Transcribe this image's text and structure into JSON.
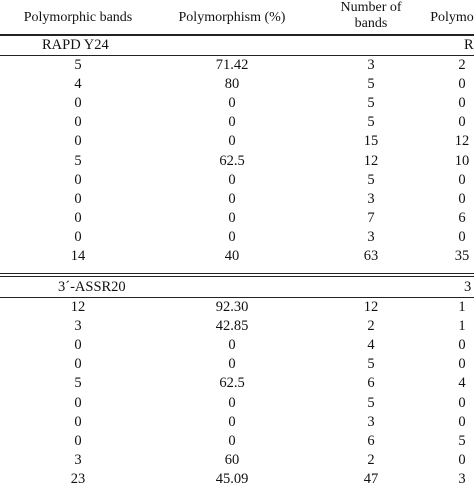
{
  "header": {
    "col1": "Polymorphic bands",
    "col2": "Polymorphism (%)",
    "col3_line1": "Number of",
    "col3_line2": "bands",
    "col4": "Polymo"
  },
  "sections": [
    {
      "label": "RAPD Y24",
      "right_label": "R",
      "rows": [
        [
          "5",
          "71.42",
          "3",
          "2"
        ],
        [
          "4",
          "80",
          "5",
          "0"
        ],
        [
          "0",
          "0",
          "5",
          "0"
        ],
        [
          "0",
          "0",
          "5",
          "0"
        ],
        [
          "0",
          "0",
          "15",
          "12"
        ],
        [
          "5",
          "62.5",
          "12",
          "10"
        ],
        [
          "0",
          "0",
          "5",
          "0"
        ],
        [
          "0",
          "0",
          "3",
          "0"
        ],
        [
          "0",
          "0",
          "7",
          "6"
        ],
        [
          "0",
          "0",
          "3",
          "0"
        ],
        [
          "14",
          "40",
          "63",
          "35"
        ]
      ]
    },
    {
      "label": "3´-ASSR20",
      "right_label": "3",
      "rows": [
        [
          "12",
          "92.30",
          "12",
          "1"
        ],
        [
          "3",
          "42.85",
          "2",
          "1"
        ],
        [
          "0",
          "0",
          "4",
          "0"
        ],
        [
          "0",
          "0",
          "5",
          "0"
        ],
        [
          "5",
          "62.5",
          "6",
          "4"
        ],
        [
          "0",
          "0",
          "5",
          "0"
        ],
        [
          "0",
          "0",
          "3",
          "0"
        ],
        [
          "0",
          "0",
          "6",
          "5"
        ],
        [
          "3",
          "60",
          "2",
          "0"
        ],
        [
          "23",
          "45.09",
          "47",
          "3"
        ]
      ]
    }
  ]
}
